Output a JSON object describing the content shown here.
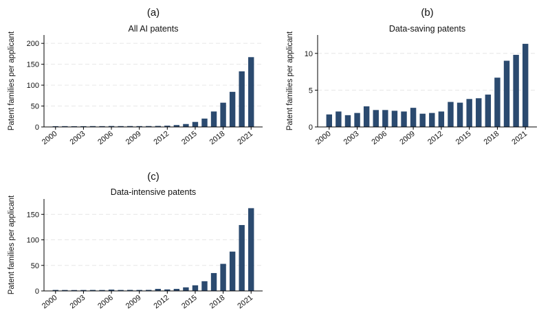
{
  "chart_data": [
    {
      "type": "bar",
      "panel_label": "(a)",
      "title": "All AI patents",
      "ylabel": "Patent families per applicant",
      "xlabel": "",
      "categories": [
        "2000",
        "2001",
        "2002",
        "2003",
        "2004",
        "2005",
        "2006",
        "2007",
        "2008",
        "2009",
        "2010",
        "2011",
        "2012",
        "2013",
        "2014",
        "2015",
        "2016",
        "2017",
        "2018",
        "2019",
        "2020",
        "2021"
      ],
      "x_tick_labels": [
        "2000",
        "2003",
        "2006",
        "2009",
        "2012",
        "2015",
        "2018",
        "2021"
      ],
      "values": [
        1.8,
        1.9,
        1.7,
        1.8,
        2.0,
        1.9,
        2.2,
        2.0,
        2.1,
        2.0,
        2.1,
        2.4,
        3.0,
        4.5,
        7,
        12,
        20,
        37,
        58,
        84,
        133,
        167
      ],
      "ylim": [
        0,
        220
      ],
      "yticks": [
        0,
        50,
        100,
        150,
        200
      ],
      "grid": true,
      "bar_color": "#2b4a6f"
    },
    {
      "type": "bar",
      "panel_label": "(b)",
      "title": "Data-saving patents",
      "ylabel": "Patent families per applicant",
      "xlabel": "",
      "categories": [
        "2000",
        "2001",
        "2002",
        "2003",
        "2004",
        "2005",
        "2006",
        "2007",
        "2008",
        "2009",
        "2010",
        "2011",
        "2012",
        "2013",
        "2014",
        "2015",
        "2016",
        "2017",
        "2018",
        "2019",
        "2020",
        "2021"
      ],
      "x_tick_labels": [
        "2000",
        "2003",
        "2006",
        "2009",
        "2012",
        "2015",
        "2018",
        "2021"
      ],
      "values": [
        1.7,
        2.1,
        1.6,
        1.9,
        2.8,
        2.3,
        2.3,
        2.2,
        2.1,
        2.6,
        1.8,
        1.9,
        2.1,
        3.4,
        3.3,
        3.8,
        3.9,
        4.4,
        6.7,
        9.0,
        9.8,
        11.3
      ],
      "ylim": [
        0,
        12.5
      ],
      "yticks": [
        0,
        5,
        10
      ],
      "grid": true,
      "bar_color": "#2b4a6f"
    },
    {
      "type": "bar",
      "panel_label": "(c)",
      "title": "Data-intensive patents",
      "ylabel": "Patent families per applicant",
      "xlabel": "",
      "categories": [
        "2000",
        "2001",
        "2002",
        "2003",
        "2004",
        "2005",
        "2006",
        "2007",
        "2008",
        "2009",
        "2010",
        "2011",
        "2012",
        "2013",
        "2014",
        "2015",
        "2016",
        "2017",
        "2018",
        "2019",
        "2020",
        "2021"
      ],
      "x_tick_labels": [
        "2000",
        "2003",
        "2006",
        "2009",
        "2012",
        "2015",
        "2018",
        "2021"
      ],
      "values": [
        1.9,
        1.8,
        1.7,
        1.8,
        1.9,
        1.8,
        2.6,
        1.9,
        2.0,
        1.9,
        2.0,
        4.0,
        3.0,
        4.0,
        7,
        11,
        19,
        35,
        53,
        77,
        129,
        162
      ],
      "ylim": [
        0,
        180
      ],
      "yticks": [
        0,
        50,
        100,
        150
      ],
      "grid": true,
      "bar_color": "#2b4a6f"
    }
  ]
}
